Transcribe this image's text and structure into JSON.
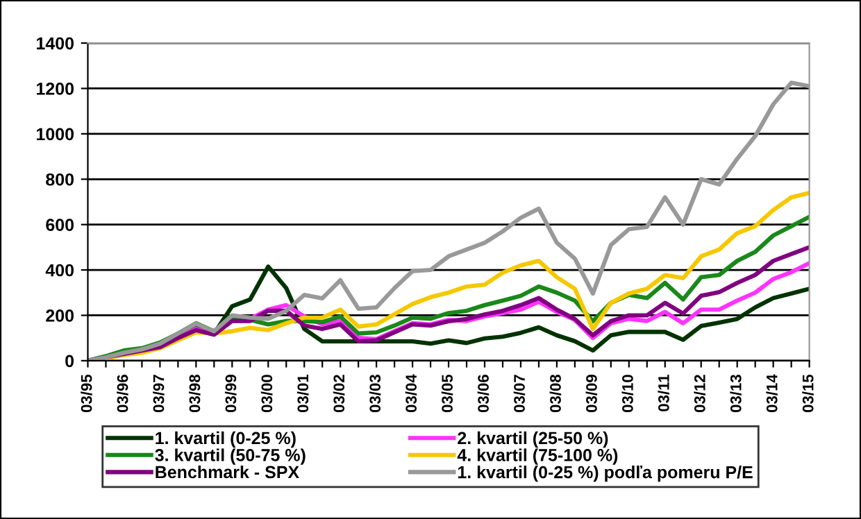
{
  "chart_data": {
    "type": "line",
    "categories": [
      "03/95",
      null,
      "03/96",
      null,
      "03/97",
      null,
      "03/98",
      null,
      "03/99",
      null,
      "03/00",
      null,
      "03/01",
      null,
      "03/02",
      null,
      "03/03",
      null,
      "03/04",
      null,
      "03/05",
      null,
      "03/06",
      null,
      "03/07",
      null,
      "03/08",
      null,
      "03/09",
      null,
      "03/10",
      null,
      "03/11",
      null,
      "03/12",
      null,
      "03/13",
      null,
      "03/14",
      null,
      "03/15"
    ],
    "series": [
      {
        "name": "1. kvartil (0-25 %)",
        "color": "#003300",
        "values": [
          0,
          15,
          35,
          45,
          70,
          110,
          150,
          120,
          240,
          270,
          415,
          320,
          140,
          85,
          85,
          85,
          85,
          85,
          85,
          75,
          90,
          78,
          98,
          106,
          123,
          147,
          112,
          86,
          45,
          112,
          127,
          127,
          127,
          92,
          153,
          168,
          184,
          235,
          276,
          296,
          317
        ]
      },
      {
        "name": "2. kvartil (25-50 %)",
        "color": "#ff33ff",
        "values": [
          null,
          null,
          null,
          null,
          65,
          100,
          140,
          115,
          185,
          185,
          225,
          245,
          195,
          160,
          175,
          100,
          95,
          130,
          165,
          160,
          180,
          175,
          195,
          210,
          225,
          260,
          215,
          180,
          100,
          165,
          185,
          175,
          215,
          165,
          225,
          225,
          265,
          300,
          360,
          390,
          430
        ]
      },
      {
        "name": "3. kvartil (50-75 %)",
        "color": "#1a881a",
        "values": [
          0,
          20,
          45,
          55,
          80,
          120,
          165,
          130,
          180,
          180,
          160,
          175,
          175,
          170,
          195,
          120,
          125,
          155,
          190,
          185,
          210,
          220,
          245,
          265,
          286,
          327,
          300,
          265,
          174,
          255,
          290,
          276,
          343,
          270,
          368,
          378,
          440,
          480,
          552,
          593,
          634
        ]
      },
      {
        "name": "4. kvartil (75-100 %)",
        "color": "#f5c800",
        "values": [
          0,
          10,
          25,
          35,
          55,
          90,
          125,
          120,
          130,
          145,
          135,
          165,
          190,
          190,
          225,
          150,
          160,
          205,
          250,
          280,
          300,
          327,
          335,
          388,
          420,
          440,
          368,
          317,
          140,
          255,
          296,
          317,
          378,
          364,
          460,
          490,
          562,
          593,
          664,
          720,
          740
        ]
      },
      {
        "name": "Benchmark - SPX",
        "color": "#800080",
        "values": [
          0,
          15,
          30,
          45,
          60,
          100,
          135,
          115,
          175,
          175,
          220,
          220,
          155,
          140,
          160,
          85,
          90,
          125,
          160,
          155,
          174,
          184,
          204,
          220,
          245,
          276,
          225,
          184,
          112,
          174,
          200,
          200,
          255,
          208,
          286,
          302,
          343,
          378,
          440,
          470,
          500
        ]
      },
      {
        "name": "1. kvartil (0-25 %) podľa pomeru P/E",
        "color": "#999999",
        "values": [
          0,
          15,
          35,
          50,
          75,
          120,
          163,
          130,
          200,
          190,
          185,
          220,
          290,
          275,
          355,
          229,
          235,
          320,
          395,
          400,
          460,
          490,
          520,
          570,
          630,
          670,
          520,
          450,
          296,
          510,
          580,
          590,
          720,
          600,
          800,
          777,
          890,
          990,
          1130,
          1225,
          1210
        ]
      }
    ],
    "ylim": [
      0,
      1400
    ],
    "yticks": [
      0,
      200,
      400,
      600,
      800,
      1000,
      1200,
      1400
    ],
    "grid": "y",
    "legend": "bottom",
    "marker": "none",
    "line_style": "solid"
  }
}
